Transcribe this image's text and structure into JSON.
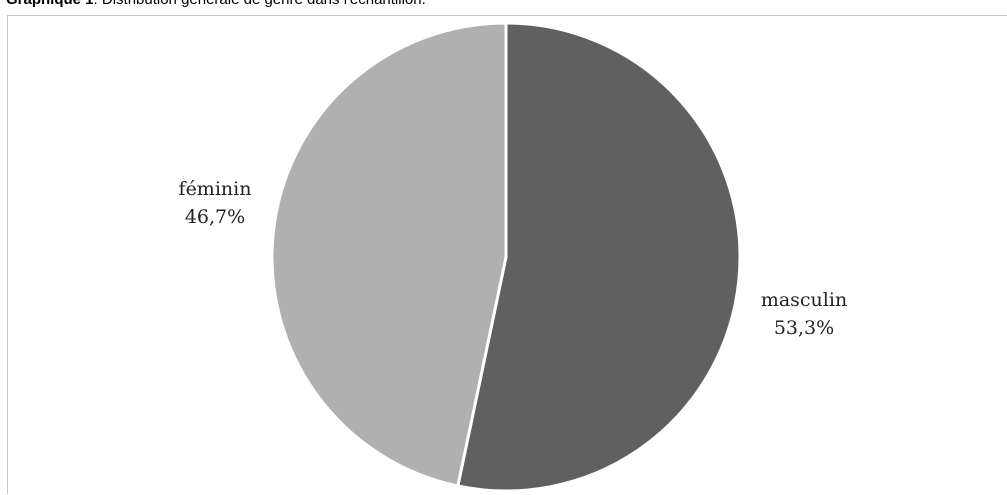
{
  "caption": {
    "prefix": "Graphique 1",
    "text": ": Distribution générale de genre dans l'échantillon."
  },
  "chart_data": {
    "type": "pie",
    "categories": [
      "masculin",
      "féminin"
    ],
    "values": [
      53.3,
      46.7
    ],
    "value_labels": [
      "53,3%",
      "46,7%"
    ],
    "colors": [
      "#606060",
      "#b0b0b0"
    ],
    "start": "12 o'clock",
    "direction": "clockwise",
    "legend": "none",
    "labels_position": "outside"
  }
}
